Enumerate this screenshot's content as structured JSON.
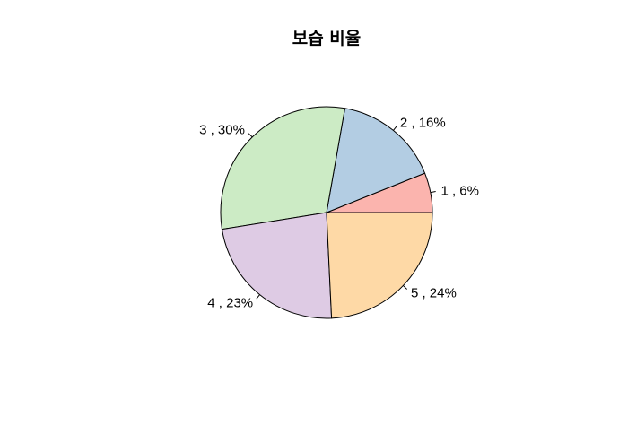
{
  "chart_data": {
    "type": "pie",
    "title": "보습 비율",
    "slices": [
      {
        "category": "1",
        "percent": 6,
        "label": "1 , 6%",
        "color": "#FBB4AE"
      },
      {
        "category": "2",
        "percent": 16,
        "label": "2 , 16%",
        "color": "#B3CDE3"
      },
      {
        "category": "3",
        "percent": 30,
        "label": "3 , 30%",
        "color": "#CCEBC5"
      },
      {
        "category": "4",
        "percent": 23,
        "label": "4 , 23%",
        "color": "#DECBE4"
      },
      {
        "category": "5",
        "percent": 24,
        "label": "5 , 24%",
        "color": "#FED9A6"
      }
    ]
  }
}
